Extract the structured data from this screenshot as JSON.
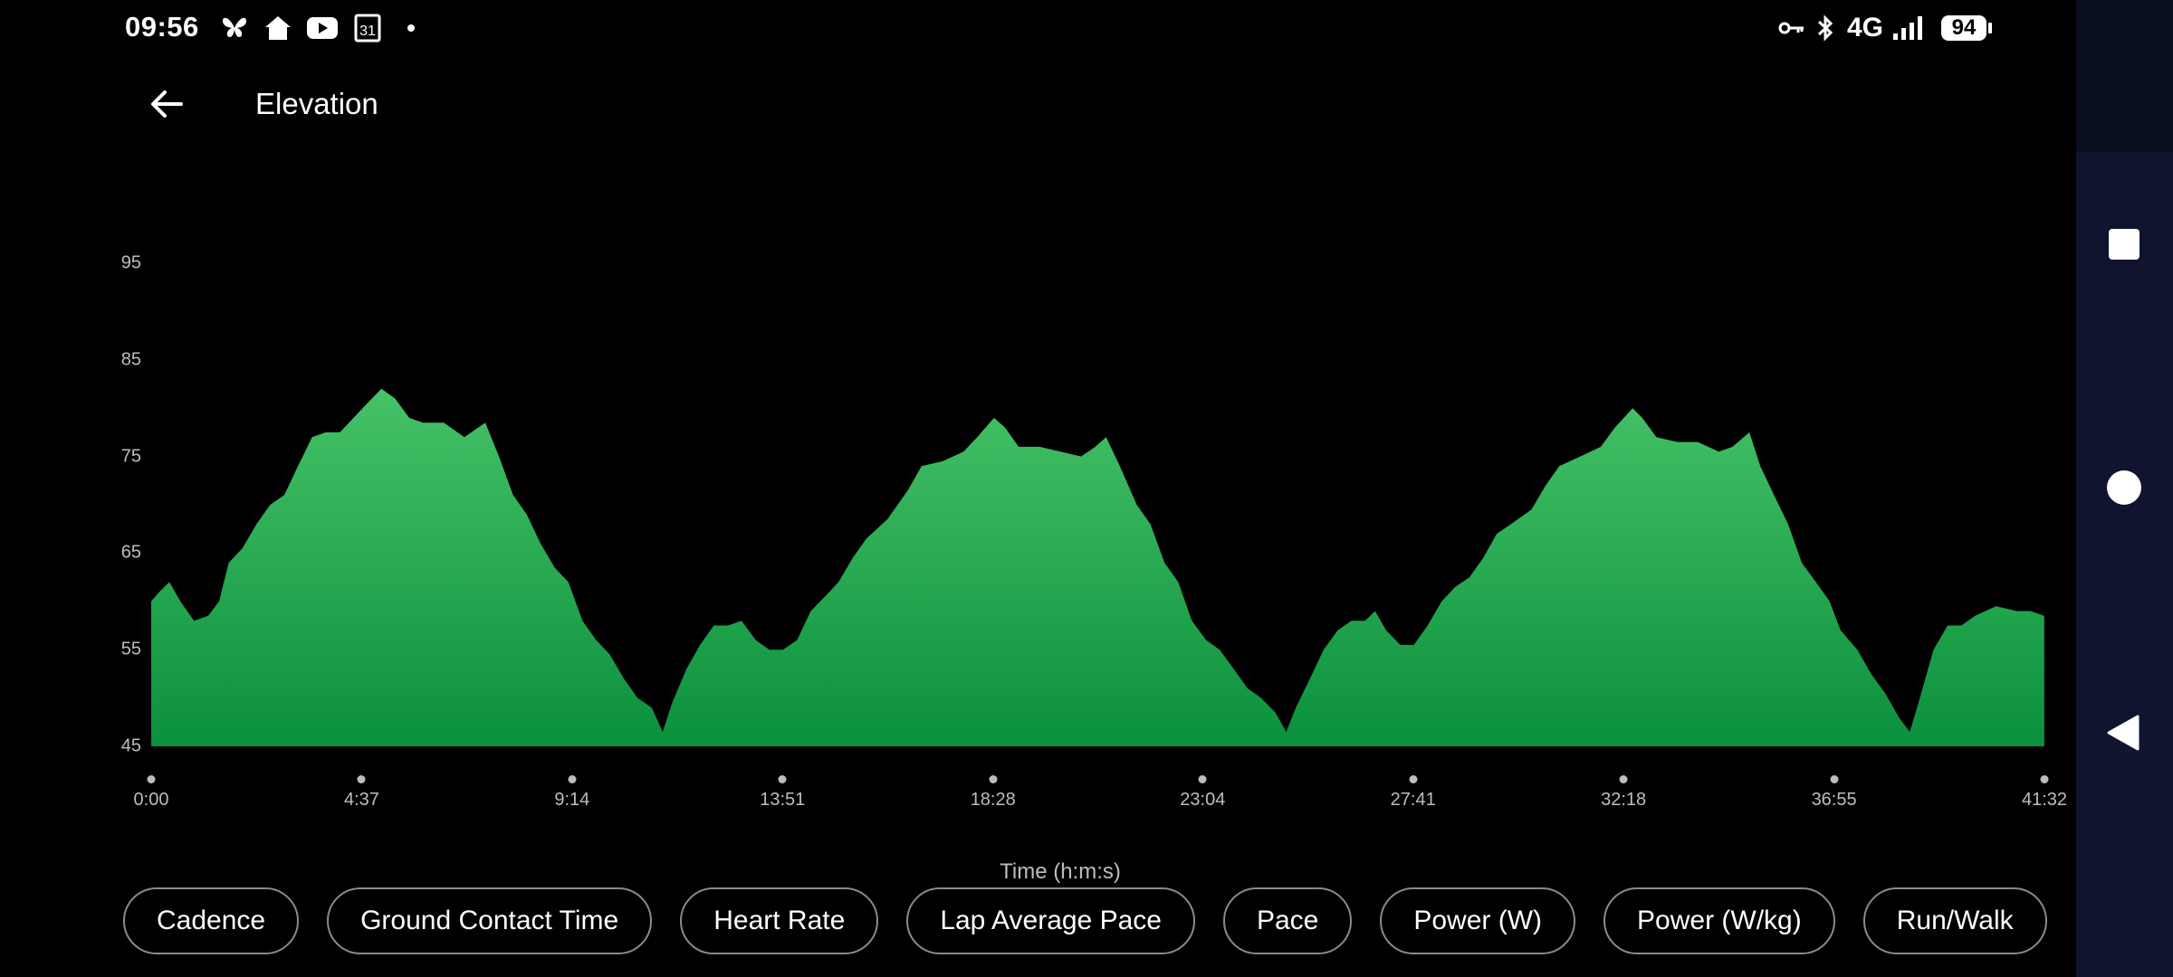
{
  "status_bar": {
    "time": "09:56",
    "battery": "94",
    "network": "4G",
    "left_icons": [
      "butterfly-icon",
      "home-icon",
      "youtube-icon",
      "calendar-icon",
      "dot-icon"
    ],
    "calendar_day": "31",
    "right_icons": [
      "key-icon",
      "bluetooth-icon",
      "network-4g",
      "signal-icon",
      "battery-icon"
    ]
  },
  "header": {
    "title": "Elevation"
  },
  "chips": [
    "Cadence",
    "Ground Contact Time",
    "Heart Rate",
    "Lap Average Pace",
    "Pace",
    "Power (W)",
    "Power (W/kg)",
    "Run/Walk"
  ],
  "nav": [
    "recents-button",
    "home-button",
    "back-button"
  ],
  "chart_data": {
    "type": "area",
    "title": "Elevation",
    "xlabel": "Time (h:m:s)",
    "ylabel": "",
    "ylim": [
      45,
      95
    ],
    "xlim_min": [
      0,
      41.533
    ],
    "yticks": [
      "45",
      "55",
      "65",
      "75",
      "85",
      "95"
    ],
    "ytick_values": [
      45,
      55,
      65,
      75,
      85,
      95
    ],
    "xticks": [
      "0:00",
      "4:37",
      "9:14",
      "13:51",
      "18:28",
      "23:04",
      "27:41",
      "32:18",
      "36:55",
      "41:32"
    ],
    "xtick_values_min": [
      0,
      4.617,
      9.233,
      13.85,
      18.467,
      23.067,
      27.683,
      32.3,
      36.917,
      41.533
    ],
    "grid": false,
    "fill_top": "#46c267",
    "fill_bottom": "#0b903d",
    "x_min": [
      0,
      0.18,
      0.4,
      0.64,
      0.94,
      1.25,
      1.49,
      1.7,
      2.0,
      2.31,
      2.61,
      2.92,
      3.22,
      3.53,
      3.83,
      4.14,
      4.44,
      4.74,
      5.05,
      5.35,
      5.66,
      5.96,
      6.42,
      6.87,
      7.33,
      7.63,
      7.94,
      8.24,
      8.54,
      8.85,
      9.15,
      9.46,
      9.76,
      10.06,
      10.37,
      10.67,
      10.98,
      11.22,
      11.43,
      11.74,
      12.04,
      12.34,
      12.65,
      12.95,
      13.26,
      13.56,
      13.86,
      14.17,
      14.47,
      14.78,
      15.08,
      15.39,
      15.69,
      16.15,
      16.6,
      16.9,
      17.36,
      17.82,
      18.12,
      18.49,
      18.73,
      19.03,
      19.49,
      19.95,
      20.4,
      20.71,
      20.95,
      21.25,
      21.62,
      21.92,
      22.23,
      22.53,
      22.83,
      23.14,
      23.44,
      23.75,
      24.05,
      24.35,
      24.66,
      24.9,
      25.11,
      25.42,
      25.72,
      26.03,
      26.33,
      26.63,
      26.85,
      27.09,
      27.4,
      27.7,
      28.0,
      28.31,
      28.61,
      28.92,
      29.22,
      29.52,
      29.83,
      30.28,
      30.59,
      30.89,
      31.35,
      31.8,
      32.11,
      32.5,
      32.71,
      33.02,
      33.48,
      33.93,
      34.39,
      34.69,
      35.06,
      35.3,
      35.6,
      35.91,
      36.21,
      36.52,
      36.82,
      37.06,
      37.43,
      37.73,
      38.04,
      38.34,
      38.58,
      38.8,
      39.1,
      39.41,
      39.71,
      40.01,
      40.47,
      40.93,
      41.23,
      41.53
    ],
    "elevation": [
      60,
      61,
      62,
      60,
      58,
      58.5,
      60,
      64,
      65.5,
      68,
      70,
      71,
      74,
      77,
      77.5,
      77.5,
      79,
      80.5,
      82,
      81,
      79,
      78.5,
      78.5,
      77,
      78.5,
      75,
      71,
      69,
      66,
      63.5,
      62,
      58,
      56,
      54.5,
      52,
      50,
      49,
      46.5,
      49.5,
      53,
      55.5,
      57.5,
      57.5,
      58,
      56,
      55,
      55,
      56,
      59,
      60.5,
      62,
      64.5,
      66.5,
      68.5,
      71.5,
      74,
      74.5,
      75.5,
      77,
      79,
      78,
      76,
      76,
      75.5,
      75,
      76,
      77,
      74,
      70,
      68,
      64,
      62,
      58,
      56,
      55,
      53,
      51,
      50,
      48.5,
      46.5,
      49,
      52,
      55,
      57,
      58,
      58,
      59,
      57,
      55.5,
      55.5,
      57.5,
      60,
      61.5,
      62.5,
      64.5,
      67,
      68,
      69.5,
      72,
      74,
      75,
      76,
      78,
      80,
      79,
      77,
      76.5,
      76.5,
      75.5,
      76,
      77.5,
      74,
      71,
      68,
      64,
      62,
      60,
      57,
      55,
      52.5,
      50.5,
      48,
      46.5,
      50,
      55,
      57.5,
      57.5,
      58.5,
      59.5,
      59,
      59,
      58.5
    ]
  }
}
